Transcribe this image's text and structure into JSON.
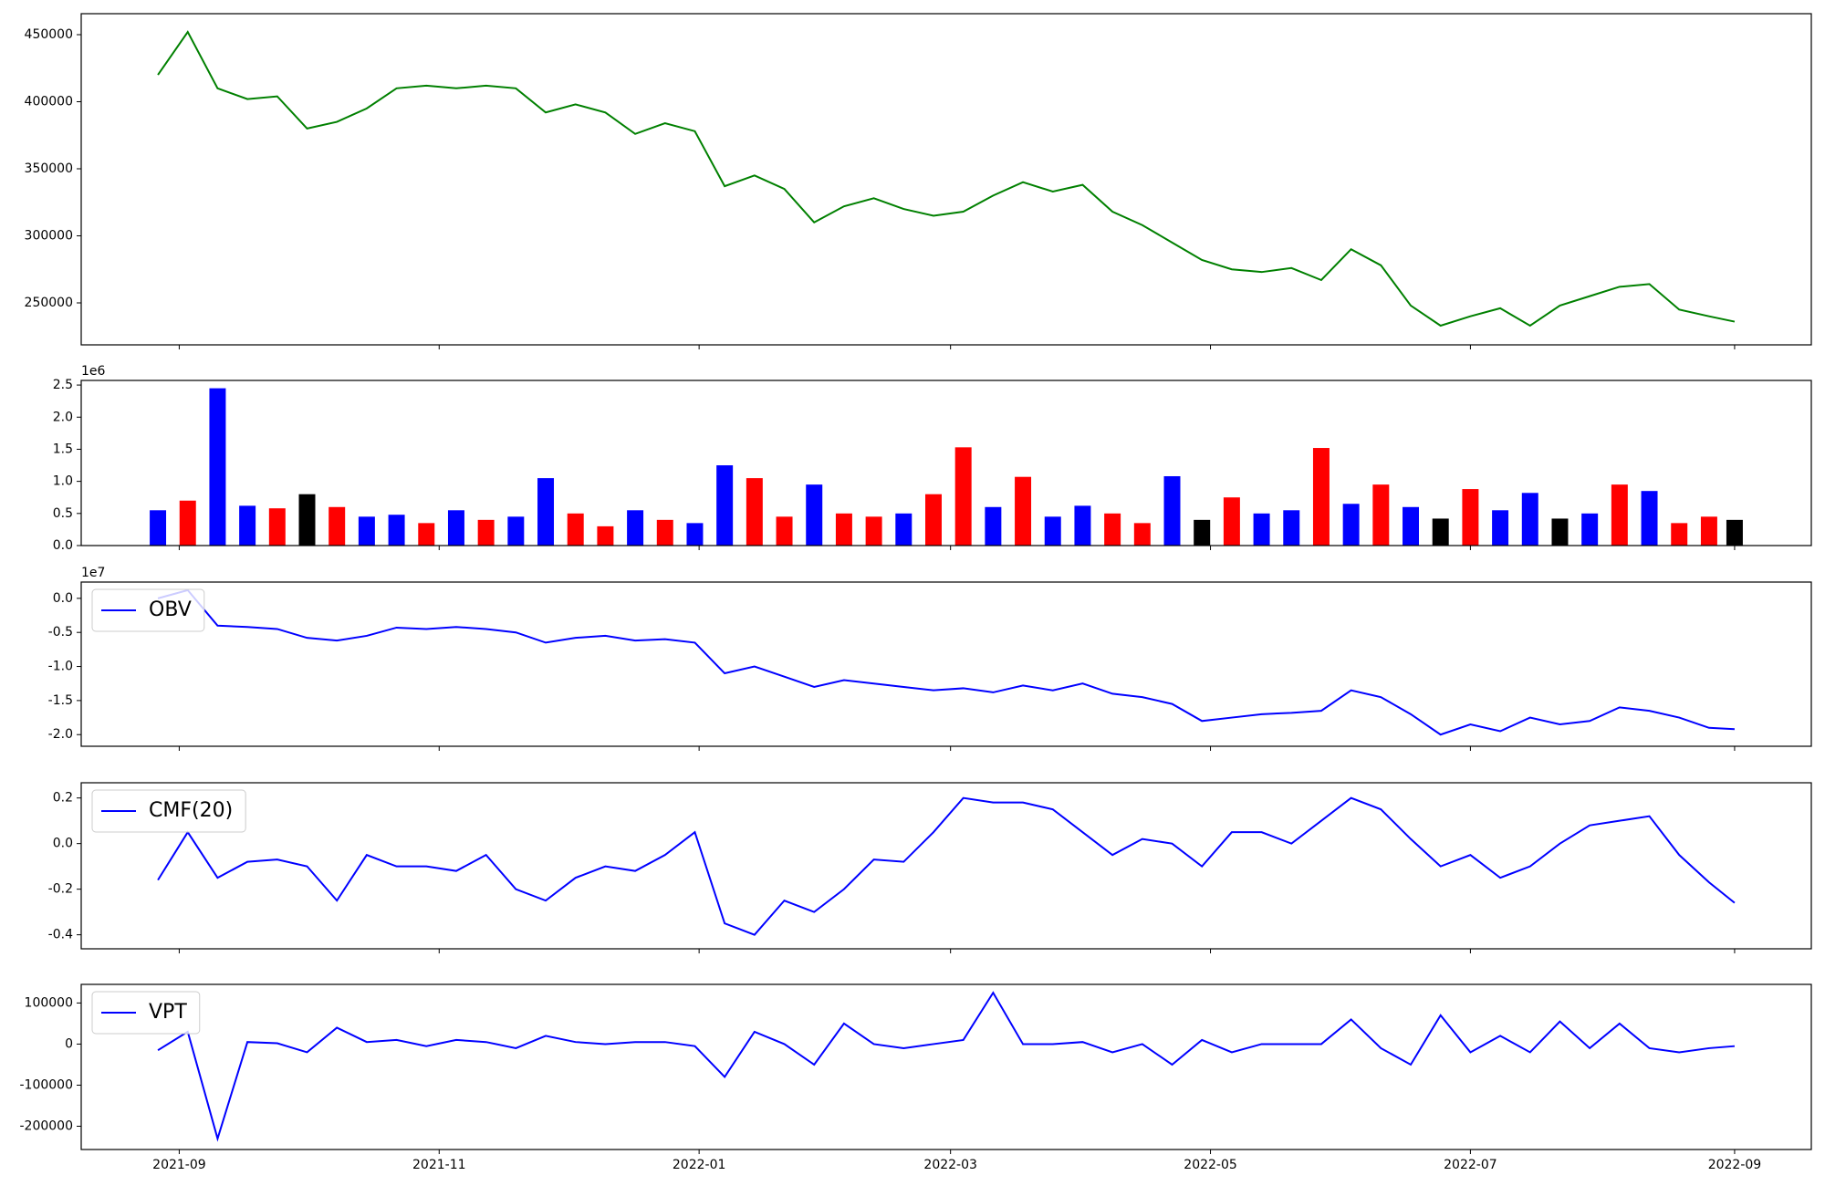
{
  "chart_data": {
    "type": "stacked",
    "x": [
      "2021-08-27",
      "2021-09-03",
      "2021-09-10",
      "2021-09-17",
      "2021-09-24",
      "2021-10-01",
      "2021-10-08",
      "2021-10-15",
      "2021-10-22",
      "2021-10-29",
      "2021-11-05",
      "2021-11-12",
      "2021-11-19",
      "2021-11-26",
      "2021-12-03",
      "2021-12-10",
      "2021-12-17",
      "2021-12-24",
      "2021-12-31",
      "2022-01-07",
      "2022-01-14",
      "2022-01-21",
      "2022-01-28",
      "2022-02-04",
      "2022-02-11",
      "2022-02-18",
      "2022-02-25",
      "2022-03-04",
      "2022-03-11",
      "2022-03-18",
      "2022-03-25",
      "2022-04-01",
      "2022-04-08",
      "2022-04-15",
      "2022-04-22",
      "2022-04-29",
      "2022-05-06",
      "2022-05-13",
      "2022-05-20",
      "2022-05-27",
      "2022-06-03",
      "2022-06-10",
      "2022-06-17",
      "2022-06-24",
      "2022-07-01",
      "2022-07-08",
      "2022-07-15",
      "2022-07-22",
      "2022-07-29",
      "2022-08-05",
      "2022-08-12",
      "2022-08-19",
      "2022-08-26",
      "2022-09-01"
    ],
    "xlim": [
      "2021-08-09",
      "2022-09-19"
    ],
    "xticks": [
      {
        "value": "2021-09-01",
        "label": "2021-09"
      },
      {
        "value": "2021-11-01",
        "label": "2021-11"
      },
      {
        "value": "2022-01-01",
        "label": "2022-01"
      },
      {
        "value": "2022-03-01",
        "label": "2022-03"
      },
      {
        "value": "2022-05-01",
        "label": "2022-05"
      },
      {
        "value": "2022-07-01",
        "label": "2022-07"
      },
      {
        "value": "2022-09-01",
        "label": "2022-09"
      }
    ],
    "panels": [
      {
        "type": "line",
        "ylim": [
          218700,
          465650
        ],
        "yticks": [
          250000,
          300000,
          350000,
          400000,
          450000
        ],
        "series": [
          {
            "color": "#008000",
            "values": [
              420000,
              452000,
              410000,
              402000,
              404000,
              380000,
              385000,
              395000,
              410000,
              412000,
              410000,
              412000,
              410000,
              392000,
              398000,
              392000,
              376000,
              384000,
              378000,
              337000,
              345000,
              335000,
              310000,
              322000,
              328000,
              320000,
              315000,
              318000,
              330000,
              340000,
              333000,
              338000,
              318000,
              308000,
              295000,
              282000,
              275000,
              273000,
              276000,
              267000,
              290000,
              278000,
              248000,
              233000,
              240000,
              246000,
              233000,
              248000,
              255000,
              262000,
              264000,
              245000,
              240000,
              236000
            ]
          }
        ]
      },
      {
        "type": "bar",
        "ylim": [
          0,
          2572000
        ],
        "offset_label": "1e6",
        "yticks": [
          {
            "value": 0,
            "label": "0.0"
          },
          {
            "value": 500000,
            "label": "0.5"
          },
          {
            "value": 1000000,
            "label": "1.0"
          },
          {
            "value": 1500000,
            "label": "1.5"
          },
          {
            "value": 2000000,
            "label": "2.0"
          },
          {
            "value": 2500000,
            "label": "2.5"
          }
        ],
        "values": [
          550000,
          700000,
          2450000,
          620000,
          580000,
          800000,
          600000,
          450000,
          480000,
          350000,
          550000,
          400000,
          450000,
          1050000,
          500000,
          300000,
          550000,
          400000,
          350000,
          1250000,
          1050000,
          450000,
          950000,
          500000,
          450000,
          500000,
          800000,
          1530000,
          600000,
          1070000,
          450000,
          620000,
          500000,
          350000,
          1080000,
          400000,
          750000,
          500000,
          550000,
          1520000,
          650000,
          950000,
          600000,
          420000,
          880000,
          550000,
          820000,
          420000,
          500000,
          950000,
          850000,
          350000,
          450000,
          400000
        ],
        "colors": [
          "#0000ff",
          "#ff0000",
          "#0000ff",
          "#0000ff",
          "#ff0000",
          "#000000",
          "#ff0000",
          "#0000ff",
          "#0000ff",
          "#ff0000",
          "#0000ff",
          "#ff0000",
          "#0000ff",
          "#0000ff",
          "#ff0000",
          "#ff0000",
          "#0000ff",
          "#ff0000",
          "#0000ff",
          "#0000ff",
          "#ff0000",
          "#ff0000",
          "#0000ff",
          "#ff0000",
          "#ff0000",
          "#0000ff",
          "#ff0000",
          "#ff0000",
          "#0000ff",
          "#ff0000",
          "#0000ff",
          "#0000ff",
          "#ff0000",
          "#ff0000",
          "#0000ff",
          "#000000",
          "#ff0000",
          "#0000ff",
          "#0000ff",
          "#ff0000",
          "#0000ff",
          "#ff0000",
          "#0000ff",
          "#000000",
          "#ff0000",
          "#0000ff",
          "#0000ff",
          "#000000",
          "#0000ff",
          "#ff0000",
          "#0000ff",
          "#ff0000",
          "#ff0000",
          "#000000"
        ]
      },
      {
        "type": "line",
        "ylim": [
          -21710000,
          2390000
        ],
        "offset_label": "1e7",
        "legend": "upper left",
        "yticks": [
          {
            "value": -20000000,
            "label": "-2.0"
          },
          {
            "value": -15000000,
            "label": "-1.5"
          },
          {
            "value": -10000000,
            "label": "-1.0"
          },
          {
            "value": -5000000,
            "label": "-0.5"
          },
          {
            "value": 0,
            "label": "0.0"
          }
        ],
        "series": [
          {
            "name": "OBV",
            "color": "#0000ff",
            "values": [
              0,
              1200000,
              -4000000,
              -4200000,
              -4500000,
              -5800000,
              -6200000,
              -5500000,
              -4300000,
              -4500000,
              -4200000,
              -4500000,
              -5000000,
              -6500000,
              -5800000,
              -5500000,
              -6200000,
              -6000000,
              -6500000,
              -11000000,
              -10000000,
              -11500000,
              -13000000,
              -12000000,
              -12500000,
              -13000000,
              -13500000,
              -13200000,
              -13800000,
              -12800000,
              -13500000,
              -12500000,
              -14000000,
              -14500000,
              -15500000,
              -18000000,
              -17500000,
              -17000000,
              -16800000,
              -16500000,
              -13500000,
              -14500000,
              -17000000,
              -20000000,
              -18500000,
              -19500000,
              -17500000,
              -18500000,
              -18000000,
              -16000000,
              -16500000,
              -17500000,
              -19000000,
              -19200000
            ]
          }
        ]
      },
      {
        "type": "line",
        "ylim": [
          -0.4615,
          0.2667
        ],
        "legend": "upper left",
        "yticks": [
          -0.4,
          -0.2,
          {
            "value": 0,
            "label": "0.0"
          },
          0.2
        ],
        "series": [
          {
            "name": "CMF(20)",
            "color": "#0000ff",
            "values": [
              -0.16,
              0.05,
              -0.15,
              -0.08,
              -0.07,
              -0.1,
              -0.25,
              -0.05,
              -0.1,
              -0.1,
              -0.12,
              -0.05,
              -0.2,
              -0.25,
              -0.15,
              -0.1,
              -0.12,
              -0.05,
              0.05,
              -0.35,
              -0.4,
              -0.25,
              -0.3,
              -0.2,
              -0.07,
              -0.08,
              0.05,
              0.2,
              0.18,
              0.18,
              0.15,
              0.05,
              -0.05,
              0.02,
              0,
              -0.1,
              0.05,
              0.05,
              0,
              0.1,
              0.2,
              0.15,
              0.02,
              -0.1,
              -0.05,
              -0.15,
              -0.1,
              0,
              0.08,
              0.1,
              0.12,
              -0.05,
              -0.17,
              -0.26
            ]
          }
        ]
      },
      {
        "type": "line",
        "ylim": [
          -256600,
          145300
        ],
        "legend": "upper left",
        "yticks": [
          -200000,
          -100000,
          0,
          100000
        ],
        "series": [
          {
            "name": "VPT",
            "color": "#0000ff",
            "values": [
              -15000,
              30000,
              -230000,
              5000,
              2000,
              -20000,
              40000,
              5000,
              10000,
              -5000,
              10000,
              5000,
              -10000,
              20000,
              5000,
              0,
              5000,
              5000,
              -5000,
              -80000,
              30000,
              0,
              -50000,
              50000,
              0,
              -10000,
              0,
              10000,
              125000,
              0,
              0,
              5000,
              -20000,
              0,
              -50000,
              10000,
              -20000,
              0,
              0,
              0,
              60000,
              -10000,
              -50000,
              70000,
              -20000,
              20000,
              -20000,
              55000,
              -10000,
              50000,
              -10000,
              -20000,
              -10000,
              -5000
            ]
          }
        ]
      }
    ]
  }
}
